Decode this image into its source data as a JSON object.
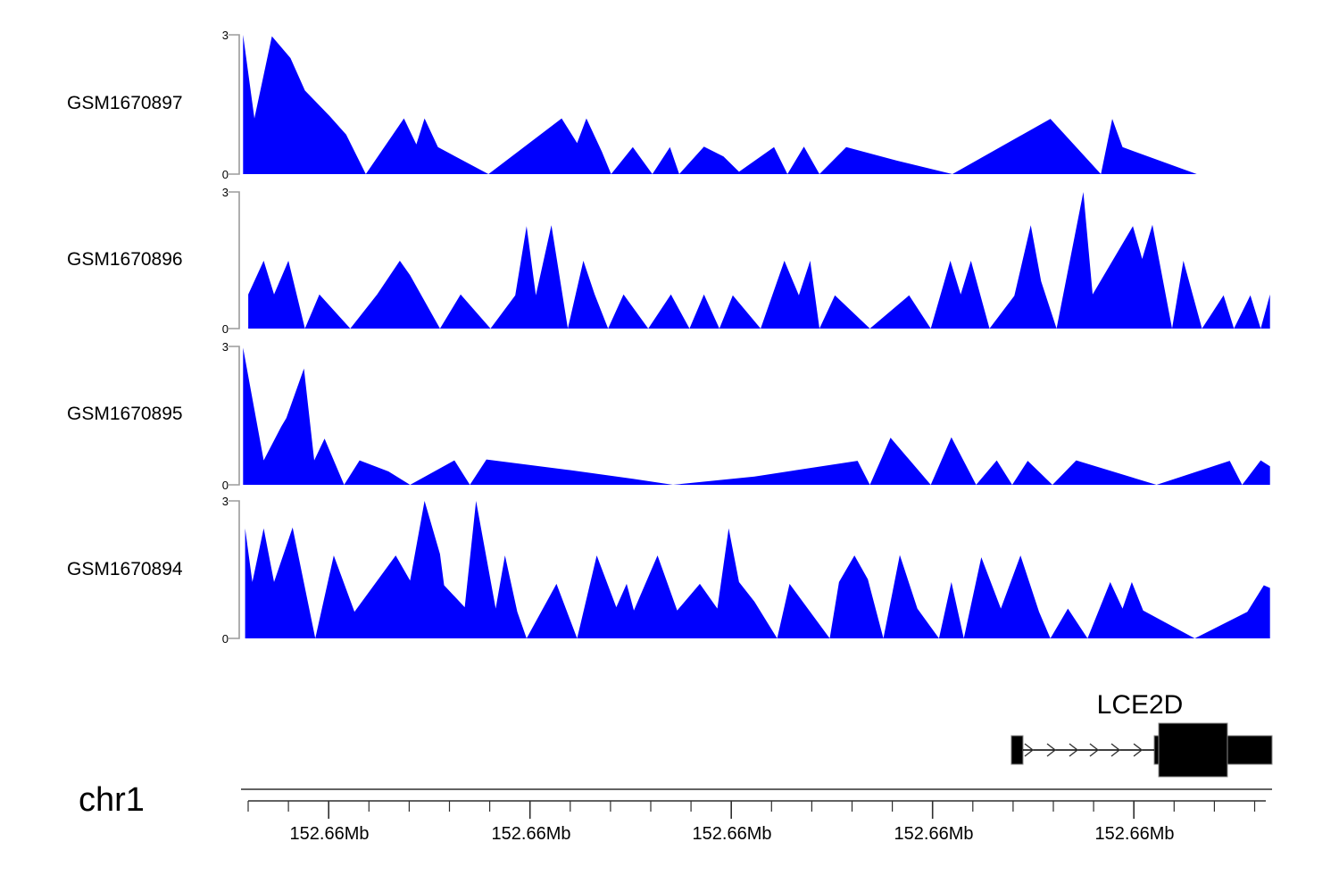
{
  "chart_data": [
    {
      "type": "area",
      "label": "GSM1670897",
      "ylim": [
        0,
        3
      ],
      "ytick_top": "3",
      "ytick_bottom": "0",
      "color": "#0000FE",
      "points": [
        [
          0.002,
          3
        ],
        [
          0.013,
          1.2
        ],
        [
          0.03,
          2.97
        ],
        [
          0.048,
          2.5
        ],
        [
          0.062,
          1.8
        ],
        [
          0.086,
          1.25
        ],
        [
          0.102,
          0.85
        ],
        [
          0.121,
          0
        ],
        [
          0.158,
          1.2
        ],
        [
          0.17,
          0.64
        ],
        [
          0.178,
          1.2
        ],
        [
          0.191,
          0.58
        ],
        [
          0.24,
          0
        ],
        [
          0.311,
          1.2
        ],
        [
          0.326,
          0.67
        ],
        [
          0.335,
          1.2
        ],
        [
          0.35,
          0.48
        ],
        [
          0.359,
          0
        ],
        [
          0.38,
          0.58
        ],
        [
          0.399,
          0
        ],
        [
          0.416,
          0.58
        ],
        [
          0.425,
          0
        ],
        [
          0.449,
          0.59
        ],
        [
          0.468,
          0.38
        ],
        [
          0.483,
          0.05
        ],
        [
          0.517,
          0.58
        ],
        [
          0.53,
          0
        ],
        [
          0.546,
          0.59
        ],
        [
          0.561,
          0
        ],
        [
          0.587,
          0.58
        ],
        [
          0.636,
          0.29
        ],
        [
          0.69,
          0
        ],
        [
          0.785,
          1.19
        ],
        [
          0.834,
          0
        ],
        [
          0.845,
          1.19
        ],
        [
          0.855,
          0.58
        ],
        [
          0.927,
          0
        ]
      ]
    },
    {
      "type": "area",
      "label": "GSM1670896",
      "ylim": [
        0,
        3
      ],
      "ytick_top": "3",
      "ytick_bottom": "0",
      "color": "#0000FE",
      "points": [
        [
          0.007,
          0.75
        ],
        [
          0.022,
          1.49
        ],
        [
          0.032,
          0.75
        ],
        [
          0.046,
          1.49
        ],
        [
          0.062,
          0
        ],
        [
          0.076,
          0.75
        ],
        [
          0.106,
          0
        ],
        [
          0.132,
          0.75
        ],
        [
          0.154,
          1.49
        ],
        [
          0.164,
          1.17
        ],
        [
          0.193,
          0
        ],
        [
          0.213,
          0.75
        ],
        [
          0.242,
          0
        ],
        [
          0.266,
          0.73
        ],
        [
          0.277,
          2.25
        ],
        [
          0.286,
          0.73
        ],
        [
          0.301,
          2.27
        ],
        [
          0.317,
          0
        ],
        [
          0.332,
          1.49
        ],
        [
          0.343,
          0.75
        ],
        [
          0.356,
          0
        ],
        [
          0.371,
          0.75
        ],
        [
          0.395,
          0
        ],
        [
          0.417,
          0.75
        ],
        [
          0.435,
          0
        ],
        [
          0.449,
          0.75
        ],
        [
          0.464,
          0
        ],
        [
          0.477,
          0.73
        ],
        [
          0.504,
          0
        ],
        [
          0.527,
          1.49
        ],
        [
          0.541,
          0.73
        ],
        [
          0.552,
          1.49
        ],
        [
          0.561,
          0
        ],
        [
          0.576,
          0.73
        ],
        [
          0.61,
          0
        ],
        [
          0.648,
          0.73
        ],
        [
          0.669,
          0
        ],
        [
          0.688,
          1.49
        ],
        [
          0.698,
          0.75
        ],
        [
          0.708,
          1.49
        ],
        [
          0.726,
          0
        ],
        [
          0.75,
          0.72
        ],
        [
          0.766,
          2.27
        ],
        [
          0.776,
          1.04
        ],
        [
          0.791,
          0
        ],
        [
          0.817,
          3
        ],
        [
          0.826,
          0.75
        ],
        [
          0.865,
          2.25
        ],
        [
          0.874,
          1.53
        ],
        [
          0.884,
          2.28
        ],
        [
          0.903,
          0
        ],
        [
          0.914,
          1.49
        ],
        [
          0.932,
          0
        ],
        [
          0.953,
          0.73
        ],
        [
          0.963,
          0
        ],
        [
          0.979,
          0.73
        ],
        [
          0.989,
          0
        ],
        [
          0.998,
          0.75
        ]
      ]
    },
    {
      "type": "area",
      "label": "GSM1670895",
      "ylim": [
        0,
        3
      ],
      "ytick_top": "3",
      "ytick_bottom": "0",
      "color": "#0000FE",
      "points": [
        [
          0.002,
          2.97
        ],
        [
          0.022,
          0.53
        ],
        [
          0.039,
          1.26
        ],
        [
          0.044,
          1.45
        ],
        [
          0.061,
          2.52
        ],
        [
          0.071,
          0.53
        ],
        [
          0.081,
          1.0
        ],
        [
          0.1,
          0
        ],
        [
          0.115,
          0.53
        ],
        [
          0.143,
          0.29
        ],
        [
          0.164,
          0
        ],
        [
          0.207,
          0.53
        ],
        [
          0.222,
          0
        ],
        [
          0.238,
          0.55
        ],
        [
          0.319,
          0.32
        ],
        [
          0.38,
          0.13
        ],
        [
          0.419,
          0
        ],
        [
          0.498,
          0.18
        ],
        [
          0.598,
          0.52
        ],
        [
          0.61,
          0
        ],
        [
          0.63,
          1.02
        ],
        [
          0.669,
          0
        ],
        [
          0.689,
          1.03
        ],
        [
          0.713,
          0
        ],
        [
          0.733,
          0.53
        ],
        [
          0.748,
          0
        ],
        [
          0.763,
          0.52
        ],
        [
          0.787,
          0
        ],
        [
          0.81,
          0.53
        ],
        [
          0.888,
          0
        ],
        [
          0.959,
          0.52
        ],
        [
          0.971,
          0
        ],
        [
          0.989,
          0.53
        ],
        [
          0.998,
          0.4
        ]
      ]
    },
    {
      "type": "area",
      "label": "GSM1670894",
      "ylim": [
        0,
        3
      ],
      "ytick_top": "3",
      "ytick_bottom": "0",
      "color": "#0000FE",
      "points": [
        [
          0.004,
          2.4
        ],
        [
          0.011,
          1.23
        ],
        [
          0.022,
          2.4
        ],
        [
          0.032,
          1.23
        ],
        [
          0.05,
          2.42
        ],
        [
          0.072,
          0
        ],
        [
          0.09,
          1.81
        ],
        [
          0.11,
          0.58
        ],
        [
          0.15,
          1.81
        ],
        [
          0.164,
          1.26
        ],
        [
          0.178,
          3
        ],
        [
          0.193,
          1.84
        ],
        [
          0.197,
          1.16
        ],
        [
          0.217,
          0.68
        ],
        [
          0.228,
          3
        ],
        [
          0.247,
          0.65
        ],
        [
          0.256,
          1.81
        ],
        [
          0.268,
          0.58
        ],
        [
          0.277,
          0
        ],
        [
          0.306,
          1.19
        ],
        [
          0.326,
          0
        ],
        [
          0.345,
          1.81
        ],
        [
          0.364,
          0.68
        ],
        [
          0.374,
          1.19
        ],
        [
          0.381,
          0.61
        ],
        [
          0.404,
          1.81
        ],
        [
          0.423,
          0.61
        ],
        [
          0.445,
          1.19
        ],
        [
          0.462,
          0.65
        ],
        [
          0.473,
          2.4
        ],
        [
          0.483,
          1.23
        ],
        [
          0.498,
          0.8
        ],
        [
          0.52,
          0
        ],
        [
          0.532,
          1.19
        ],
        [
          0.571,
          0
        ],
        [
          0.58,
          1.23
        ],
        [
          0.595,
          1.81
        ],
        [
          0.608,
          1.29
        ],
        [
          0.623,
          0
        ],
        [
          0.639,
          1.82
        ],
        [
          0.656,
          0.65
        ],
        [
          0.677,
          0
        ],
        [
          0.689,
          1.23
        ],
        [
          0.701,
          0
        ],
        [
          0.718,
          1.77
        ],
        [
          0.737,
          0.65
        ],
        [
          0.756,
          1.81
        ],
        [
          0.774,
          0.58
        ],
        [
          0.785,
          0
        ],
        [
          0.802,
          0.65
        ],
        [
          0.821,
          0
        ],
        [
          0.843,
          1.23
        ],
        [
          0.855,
          0.65
        ],
        [
          0.864,
          1.23
        ],
        [
          0.875,
          0.61
        ],
        [
          0.925,
          0
        ],
        [
          0.976,
          0.58
        ],
        [
          0.992,
          1.16
        ],
        [
          0.998,
          1.1
        ]
      ]
    }
  ],
  "axis": {
    "chromosome": "chr1",
    "major_ticks": [
      {
        "label": "152.66Mb"
      },
      {
        "label": "152.66Mb"
      },
      {
        "label": "152.66Mb"
      },
      {
        "label": "152.66Mb"
      },
      {
        "label": "152.66Mb"
      }
    ],
    "minor_tick_count": 26
  },
  "gene_track": {
    "label": "LCE2D",
    "arrow_count": 6
  }
}
